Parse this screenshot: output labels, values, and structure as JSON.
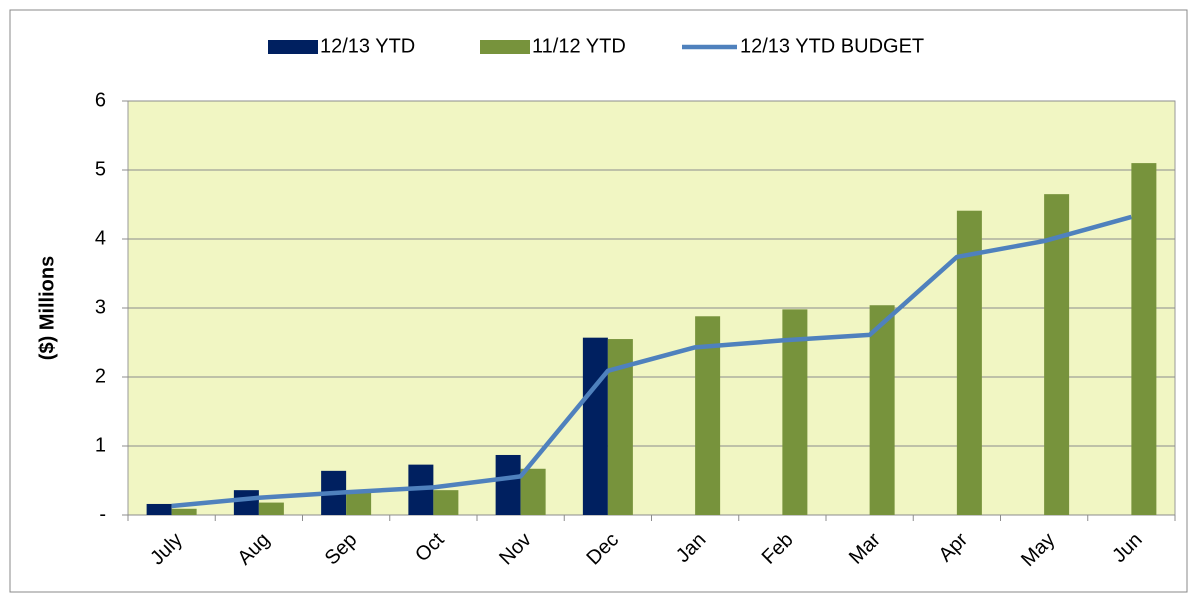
{
  "chart_data": {
    "type": "bar",
    "y_label": "($) Millions",
    "categories": [
      "July",
      "Aug",
      "Sep",
      "Oct",
      "Nov",
      "Dec",
      "Jan",
      "Feb",
      "Mar",
      "Apr",
      "May",
      "Jun"
    ],
    "series": [
      {
        "name": "12/13 YTD",
        "type": "bar",
        "color": "#002060",
        "values": [
          0.16,
          0.36,
          0.64,
          0.73,
          0.87,
          2.57,
          null,
          null,
          null,
          null,
          null,
          null
        ]
      },
      {
        "name": "11/12 YTD",
        "type": "bar",
        "color": "#77933c",
        "values": [
          0.09,
          0.18,
          0.33,
          0.36,
          0.67,
          2.55,
          2.88,
          2.98,
          3.04,
          4.41,
          4.65,
          5.1
        ]
      },
      {
        "name": "12/13 YTD BUDGET",
        "type": "line",
        "color": "#4f81bd",
        "values": [
          0.13,
          0.25,
          0.33,
          0.4,
          0.56,
          2.09,
          2.43,
          2.53,
          2.61,
          3.74,
          3.97,
          4.32
        ]
      }
    ],
    "ylim": [
      0,
      6
    ],
    "yticks": [
      {
        "value": 0,
        "label": "-"
      },
      1,
      2,
      3,
      4,
      5,
      6
    ],
    "grid": true,
    "legend": "top"
  }
}
